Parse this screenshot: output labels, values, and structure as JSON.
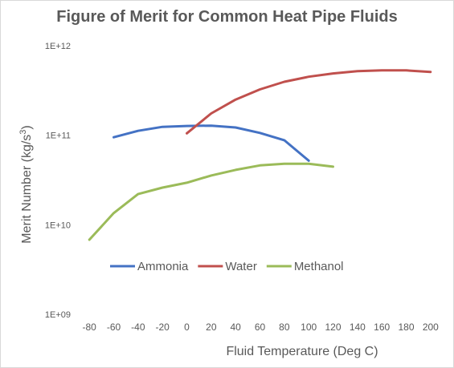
{
  "chart_data": {
    "type": "line",
    "title": "Figure of Merit for Common Heat Pipe Fluids",
    "xlabel": "Fluid Temperature  (Deg C)",
    "ylabel_main": "Merit Number (kg/s",
    "ylabel_sup": "3",
    "ylabel_close": ")",
    "xlim": [
      -90,
      210
    ],
    "xticks": [
      -80,
      -60,
      -40,
      -20,
      0,
      20,
      40,
      60,
      80,
      100,
      120,
      140,
      160,
      180,
      200
    ],
    "ylim": [
      1000000000.0,
      1000000000000.0
    ],
    "yscale": "log",
    "yticks": [
      1000000000.0,
      10000000000.0,
      100000000000.0,
      1000000000000.0
    ],
    "ytick_labels": [
      "1E+09",
      "1E+10",
      "1E+11",
      "1E+12"
    ],
    "grid": false,
    "legend_position": "middle-left",
    "series": [
      {
        "name": "Ammonia",
        "color": "#4472c4",
        "x": [
          -60,
          -40,
          -20,
          0,
          20,
          40,
          60,
          80,
          100
        ],
        "y": [
          95000000000.0,
          112000000000.0,
          124000000000.0,
          127000000000.0,
          128000000000.0,
          122000000000.0,
          106000000000.0,
          88000000000.0,
          52000000000.0
        ]
      },
      {
        "name": "Water",
        "color": "#c0504d",
        "x": [
          0,
          20,
          40,
          60,
          80,
          100,
          120,
          140,
          160,
          180,
          200
        ],
        "y": [
          105000000000.0,
          175000000000.0,
          250000000000.0,
          325000000000.0,
          395000000000.0,
          450000000000.0,
          490000000000.0,
          520000000000.0,
          530000000000.0,
          530000000000.0,
          510000000000.0
        ]
      },
      {
        "name": "Methanol",
        "color": "#9bbb59",
        "x": [
          -80,
          -60,
          -40,
          -20,
          0,
          20,
          40,
          60,
          80,
          100,
          120
        ],
        "y": [
          6800000000.0,
          13500000000.0,
          22000000000.0,
          26000000000.0,
          29500000000.0,
          35500000000.0,
          41000000000.0,
          46000000000.0,
          48000000000.0,
          48000000000.0,
          44500000000.0
        ]
      }
    ]
  }
}
